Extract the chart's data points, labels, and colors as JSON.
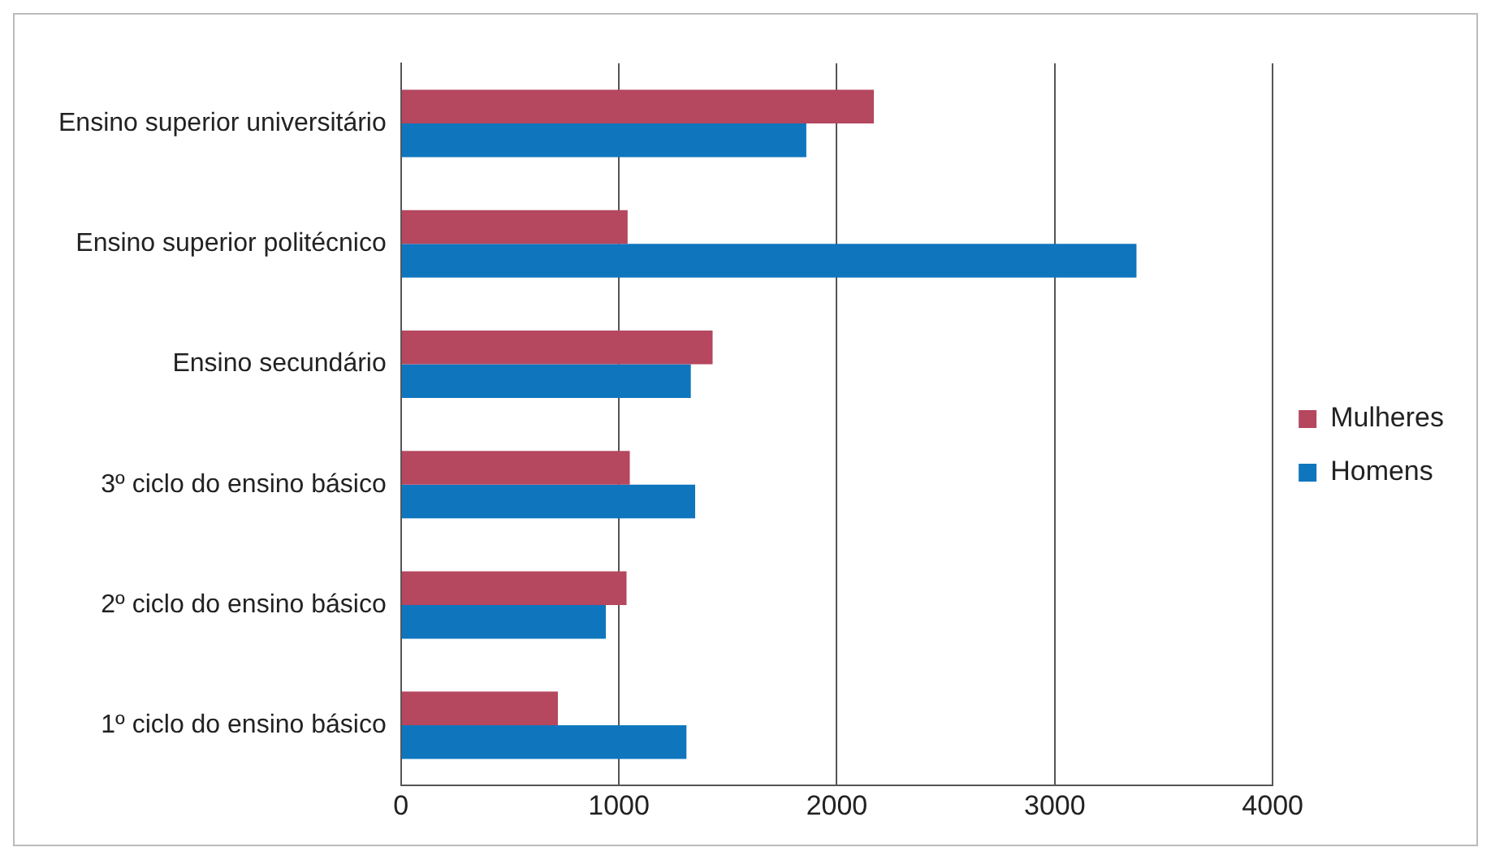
{
  "chart_data": {
    "type": "bar",
    "orientation": "horizontal",
    "categories": [
      "Ensino superior universitário",
      "Ensino superior politécnico",
      "Ensino secundário",
      "3º ciclo do ensino básico",
      "2º ciclo do ensino básico",
      "1º ciclo do ensino básico"
    ],
    "series": [
      {
        "name": "Mulheres",
        "color": "#b5475f",
        "values": [
          2170,
          1040,
          1430,
          1050,
          1035,
          720
        ]
      },
      {
        "name": "Homens",
        "color": "#0f76be",
        "values": [
          1860,
          3375,
          1330,
          1350,
          940,
          1310
        ]
      }
    ],
    "xlim": [
      0,
      4000
    ],
    "xticks": [
      0,
      1000,
      2000,
      3000,
      4000
    ],
    "grid": "x",
    "legend": "right"
  }
}
